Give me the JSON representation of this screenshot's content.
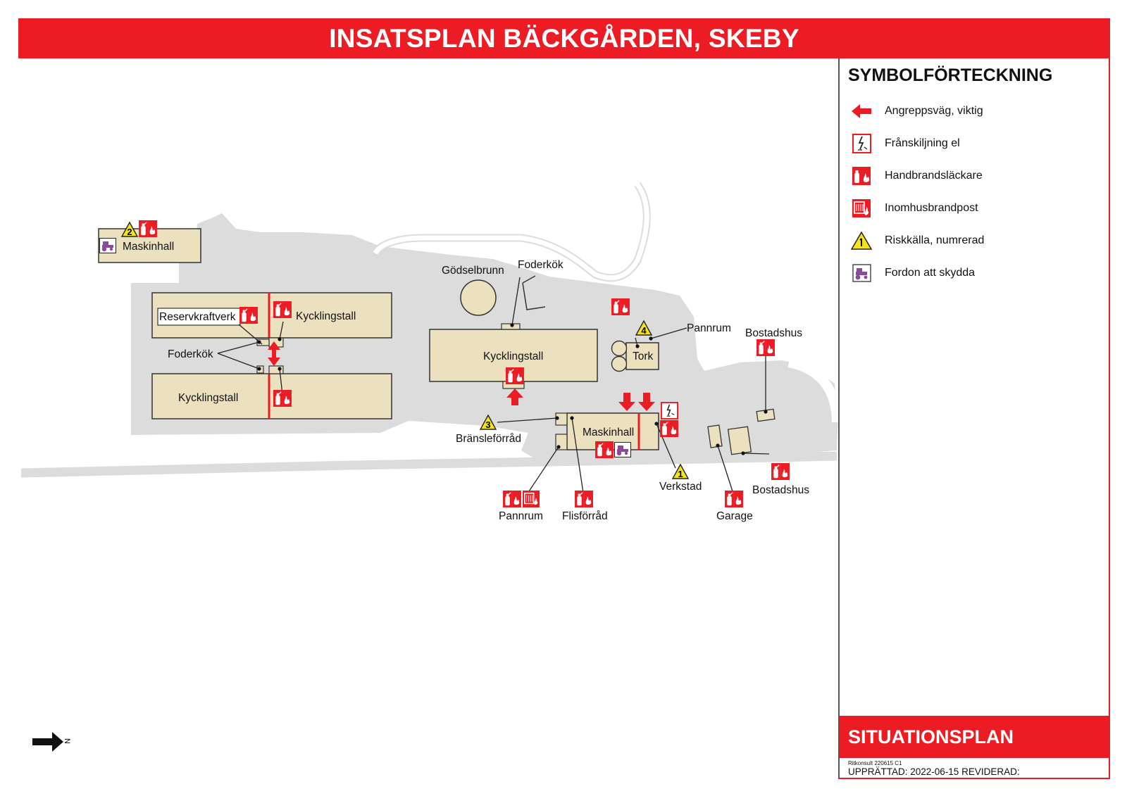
{
  "header": {
    "title": "INSATSPLAN BÄCKGÅRDEN, SKEBY"
  },
  "legend": {
    "title": "SYMBOLFÖRTECKNING",
    "items": [
      {
        "icon": "attack-arrow-icon",
        "label": "Angreppsväg, viktig"
      },
      {
        "icon": "electric-disconnect-icon",
        "label": "Frånskiljning el"
      },
      {
        "icon": "fire-extinguisher-icon",
        "label": "Handbrandsläckare"
      },
      {
        "icon": "fire-hose-icon",
        "label": "Inomhusbrandpost"
      },
      {
        "icon": "hazard-triangle-icon",
        "label": "Riskkälla, numrerad"
      },
      {
        "icon": "vehicle-icon",
        "label": "Fordon att skydda"
      }
    ]
  },
  "map": {
    "labels": {
      "maskinhall_nw": "Maskinhall",
      "reservkraftverk": "Reservkraftverk",
      "kycklingstall_1": "Kycklingstall",
      "foderkok_left": "Foderkök",
      "kycklingstall_2": "Kycklingstall",
      "godselbrunn": "Gödselbrunn",
      "foderkok_mid": "Foderkök",
      "kycklingstall_3": "Kycklingstall",
      "pannrum_top": "Pannrum",
      "tork": "Tork",
      "bostadshus_top": "Bostadshus",
      "bransleforrad": "Bränsleförråd",
      "maskinhall_main": "Maskinhall",
      "verkstad": "Verkstad",
      "bostadshus_bottom": "Bostadshus",
      "pannrum_bottom": "Pannrum",
      "flisforrad": "Flisförråd",
      "garage": "Garage"
    },
    "risk_numbers": [
      "1",
      "2",
      "3",
      "4"
    ],
    "north_label": "N"
  },
  "footer": {
    "plan_type": "SITUATIONSPLAN",
    "company": "Ritkonsult 220615 C1",
    "dates": "UPPRÄTTAD: 2022-06-15 REVIDERAD:"
  },
  "colors": {
    "accent_red": "#ec1c24",
    "building_fill": "#ece1bf",
    "ground_gray": "#dcdcdc",
    "hazard_yellow": "#f3e21c",
    "vehicle_purple": "#8a4a9a"
  }
}
